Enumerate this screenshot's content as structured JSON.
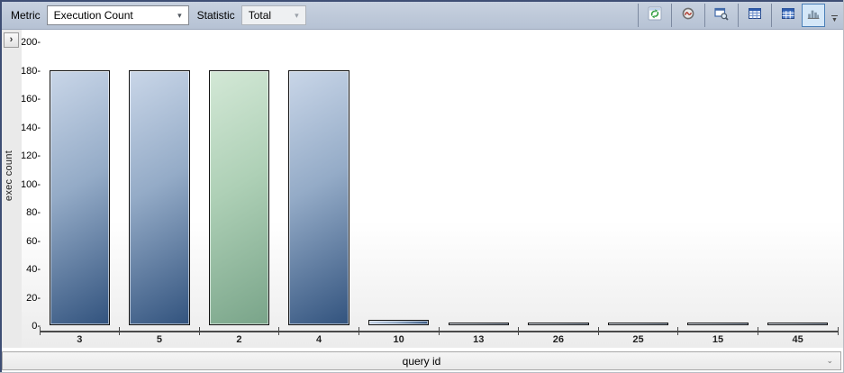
{
  "toolbar": {
    "metric_label": "Metric",
    "metric_value": "Execution Count",
    "statistic_label": "Statistic",
    "statistic_value": "Total",
    "buttons": [
      "refresh",
      "track-query",
      "view-query-plan",
      "grid-view",
      "grid-view-additional",
      "chart-view"
    ],
    "selected_button": "chart-view",
    "overflow_icon": "toolbar-overflow-chevron"
  },
  "panel": {
    "expander_glyph": "›",
    "y_axis_title": "exec count",
    "x_axis_selector_value": "query id",
    "x_axis_selector_chevron": "⌄"
  },
  "chart_data": {
    "type": "bar",
    "title": "",
    "xlabel": "query id",
    "ylabel": "exec count",
    "categories": [
      "3",
      "5",
      "2",
      "4",
      "10",
      "13",
      "26",
      "25",
      "15",
      "45"
    ],
    "values": [
      180,
      180,
      180,
      180,
      4,
      2,
      2,
      2,
      2,
      2
    ],
    "selected_category": "2",
    "ylim": [
      0,
      200
    ],
    "y_ticks": [
      0,
      20,
      40,
      60,
      80,
      100,
      120,
      140,
      160,
      180,
      200
    ],
    "grid": false,
    "legend": false,
    "bar_color": "#32537e",
    "selected_bar_color": "#79a489"
  },
  "colors": {
    "toolbar_bg": "#bdc8d7",
    "window_border": "#3e4e74",
    "selected_button_bg": "#d4e7f8",
    "selected_button_border": "#4a7fb8",
    "axis_color": "#4a4a4a",
    "plot_bg_bottom": "#ececec"
  }
}
